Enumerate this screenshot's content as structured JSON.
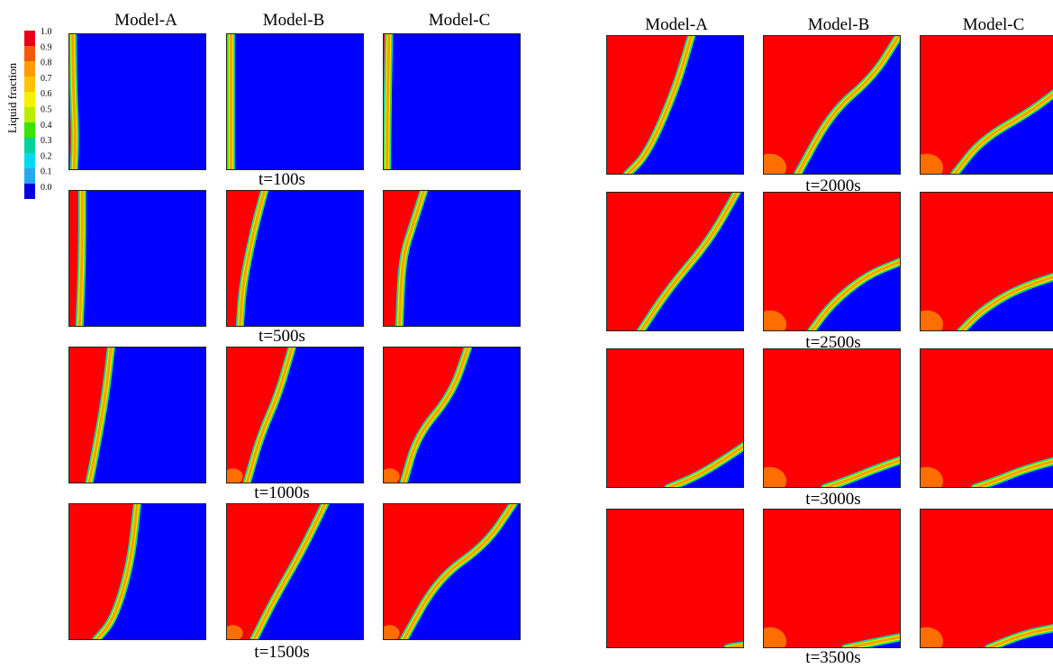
{
  "colorbar": {
    "title": "Liquid fraction",
    "ticks": [
      "1.0",
      "0.9",
      "0.8",
      "0.7",
      "0.6",
      "0.5",
      "0.4",
      "0.3",
      "0.2",
      "0.1",
      "0.0"
    ],
    "colors": [
      "#e8001a",
      "#f25a0a",
      "#ff9d00",
      "#ffc400",
      "#f3f000",
      "#b8ef00",
      "#3fe100",
      "#00d39a",
      "#00dced",
      "#28a9ee",
      "#0000e1"
    ]
  },
  "panel_groups": [
    {
      "id": "left",
      "models": [
        "Model-A",
        "Model-B",
        "Model-C"
      ],
      "times": [
        "t=100s",
        "t=500s",
        "t=1000s",
        "t=1500s"
      ]
    },
    {
      "id": "right",
      "models": [
        "Model-A",
        "Model-B",
        "Model-C"
      ],
      "times": [
        "t=2000s",
        "t=2500s",
        "t=3000s",
        "t=3500s"
      ]
    }
  ],
  "liquid_color": "#ff0000",
  "solid_color": "#0000ff"
}
